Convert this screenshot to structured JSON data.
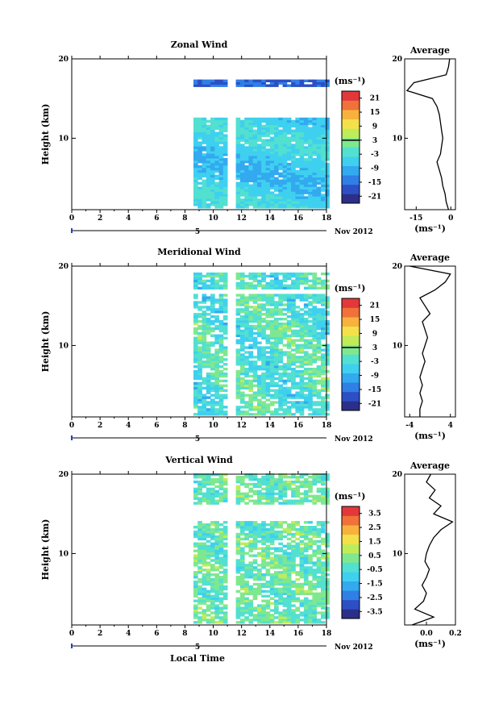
{
  "chart_data": [
    {
      "type": "heatmap",
      "title": "Zonal Wind",
      "xlabel": "",
      "ylabel": "Height (km)",
      "x_ticks": [
        "0",
        "2",
        "4",
        "6",
        "8",
        "10",
        "12",
        "14",
        "16",
        "18"
      ],
      "y_ticks": [
        "10",
        "20"
      ],
      "xlim": [
        0,
        18
      ],
      "ylim": [
        1,
        20
      ],
      "date_marker": "5",
      "date_label": "Nov 2012",
      "colorbar": {
        "unit": "(ms⁻¹)",
        "ticks": [
          "21",
          "15",
          "9",
          "3",
          "-3",
          "-9",
          "-15",
          "-21"
        ],
        "range": [
          -24,
          24
        ],
        "contour": 3
      },
      "data_coverage": {
        "time_start": 8.6,
        "time_end": 18,
        "gap": [
          11.2,
          11.6
        ],
        "height_max": 12.6,
        "upper_layer": [
          16.3,
          17.3
        ]
      },
      "profile": {
        "title": "Average",
        "xticks": [
          "-15",
          "0"
        ],
        "xlim": [
          -20,
          2
        ],
        "xunit": "(ms⁻¹)",
        "y_ticks": [
          "10",
          "20"
        ],
        "heights": [
          1,
          2,
          3,
          4,
          5,
          6,
          7,
          8,
          9,
          10,
          11,
          12,
          13,
          14,
          15,
          16,
          17,
          18,
          19,
          20
        ],
        "values": [
          -1,
          -2,
          -2.5,
          -3.5,
          -4,
          -5,
          -6,
          -4.5,
          -4,
          -3.5,
          -4,
          -4.5,
          -5,
          -6,
          -8,
          -19,
          -16,
          -2,
          -1,
          -0.5
        ]
      }
    },
    {
      "type": "heatmap",
      "title": "Meridional Wind",
      "xlabel": "",
      "ylabel": "Height (km)",
      "x_ticks": [
        "0",
        "2",
        "4",
        "6",
        "8",
        "10",
        "12",
        "14",
        "16",
        "18"
      ],
      "y_ticks": [
        "10",
        "20"
      ],
      "xlim": [
        0,
        18
      ],
      "ylim": [
        1,
        20
      ],
      "date_marker": "5",
      "date_label": "Nov 2012",
      "colorbar": {
        "unit": "(ms⁻¹)",
        "ticks": [
          "21",
          "15",
          "9",
          "3",
          "-3",
          "-9",
          "-15",
          "-21"
        ],
        "range": [
          -24,
          24
        ],
        "contour": 3
      },
      "data_coverage": {
        "time_start": 8.6,
        "time_end": 18,
        "gap": [
          11.2,
          11.6
        ],
        "height_max": 16.5,
        "upper_layer": [
          17.0,
          19.0
        ]
      },
      "profile": {
        "title": "Average",
        "xticks": [
          "-4",
          "4"
        ],
        "xlim": [
          -5,
          5
        ],
        "xunit": "(ms⁻¹)",
        "y_ticks": [
          "10",
          "20"
        ],
        "heights": [
          1,
          2,
          3,
          4,
          5,
          6,
          7,
          8,
          9,
          10,
          11,
          12,
          13,
          14,
          15,
          16,
          17,
          18,
          19,
          20
        ],
        "values": [
          -2,
          -2,
          -1.5,
          -2,
          -1.5,
          -2,
          -1.5,
          -1,
          -1.5,
          -1,
          -0.5,
          -1,
          -1.5,
          0,
          -1,
          -2,
          1,
          3,
          4,
          -4
        ]
      }
    },
    {
      "type": "heatmap",
      "title": "Vertical Wind",
      "xlabel": "Local Time",
      "ylabel": "Height (km)",
      "x_ticks": [
        "0",
        "2",
        "4",
        "6",
        "8",
        "10",
        "12",
        "14",
        "16",
        "18"
      ],
      "y_ticks": [
        "10",
        "20"
      ],
      "xlim": [
        0,
        18
      ],
      "ylim": [
        1,
        20
      ],
      "date_marker": "5",
      "date_label": "Nov 2012",
      "colorbar": {
        "unit": "(ms⁻¹)",
        "ticks": [
          "3.5",
          "2.5",
          "1.5",
          "0.5",
          "-0.5",
          "-1.5",
          "-2.5",
          "-3.5"
        ],
        "range": [
          -4,
          4
        ]
      },
      "data_coverage": {
        "time_start": 8.6,
        "time_end": 18,
        "gap": [
          11.2,
          11.6
        ],
        "height_max": 20,
        "no_data_band": [
          14.0,
          16.0
        ]
      },
      "profile": {
        "title": "Average",
        "xticks": [
          "0.0",
          "0.2"
        ],
        "xlim": [
          -0.15,
          0.2
        ],
        "xunit": "(ms⁻¹)",
        "y_ticks": [
          "10",
          "20"
        ],
        "heights": [
          1,
          2,
          3,
          4,
          5,
          6,
          7,
          8,
          9,
          10,
          11,
          12,
          13,
          14,
          15,
          16,
          17,
          18,
          19,
          20
        ],
        "values": [
          -0.1,
          0.05,
          -0.08,
          -0.02,
          0.0,
          -0.03,
          0.0,
          0.02,
          -0.01,
          0.0,
          0.02,
          0.05,
          0.1,
          0.18,
          0.05,
          0.1,
          0.02,
          0.06,
          0.0,
          0.03
        ]
      }
    }
  ]
}
